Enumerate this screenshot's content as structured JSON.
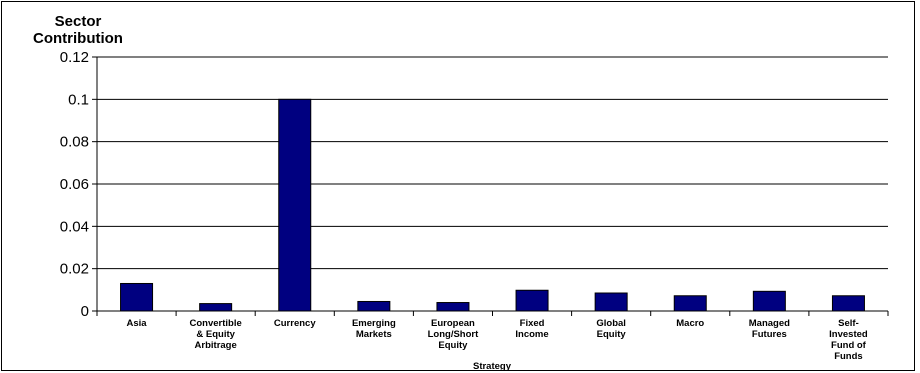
{
  "chart_data": {
    "type": "bar",
    "ylabel": "Sector Contribution",
    "ylabel_lines": [
      "Sector",
      "Contribution"
    ],
    "xlabel": "Strategy",
    "categories": [
      "Asia",
      "Convertible & Equity Arbitrage",
      "Currency",
      "Emerging Markets",
      "European Long/Short Equity",
      "Fixed Income",
      "Global Equity",
      "Macro",
      "Managed Futures",
      "Self-Invested Fund of Funds"
    ],
    "category_lines": [
      [
        "Asia"
      ],
      [
        "Convertible",
        "& Equity",
        "Arbitrage"
      ],
      [
        "Currency"
      ],
      [
        "Emerging",
        "Markets"
      ],
      [
        "European",
        "Long/Short",
        "Equity"
      ],
      [
        "Fixed",
        "Income"
      ],
      [
        "Global",
        "Equity"
      ],
      [
        "Macro"
      ],
      [
        "Managed",
        "Futures"
      ],
      [
        "Self-",
        "Invested",
        "Fund of",
        "Funds"
      ]
    ],
    "values": [
      0.013,
      0.0035,
      0.1,
      0.0045,
      0.004,
      0.0098,
      0.0085,
      0.0072,
      0.0093,
      0.0072
    ],
    "ylim": [
      0,
      0.12
    ],
    "yticks": [
      "0",
      "0.02",
      "0.04",
      "0.06",
      "0.08",
      "0.1",
      "0.12"
    ],
    "grid": true,
    "legend": "none",
    "bar_color": "#000080",
    "gridline_color": "#000000"
  }
}
